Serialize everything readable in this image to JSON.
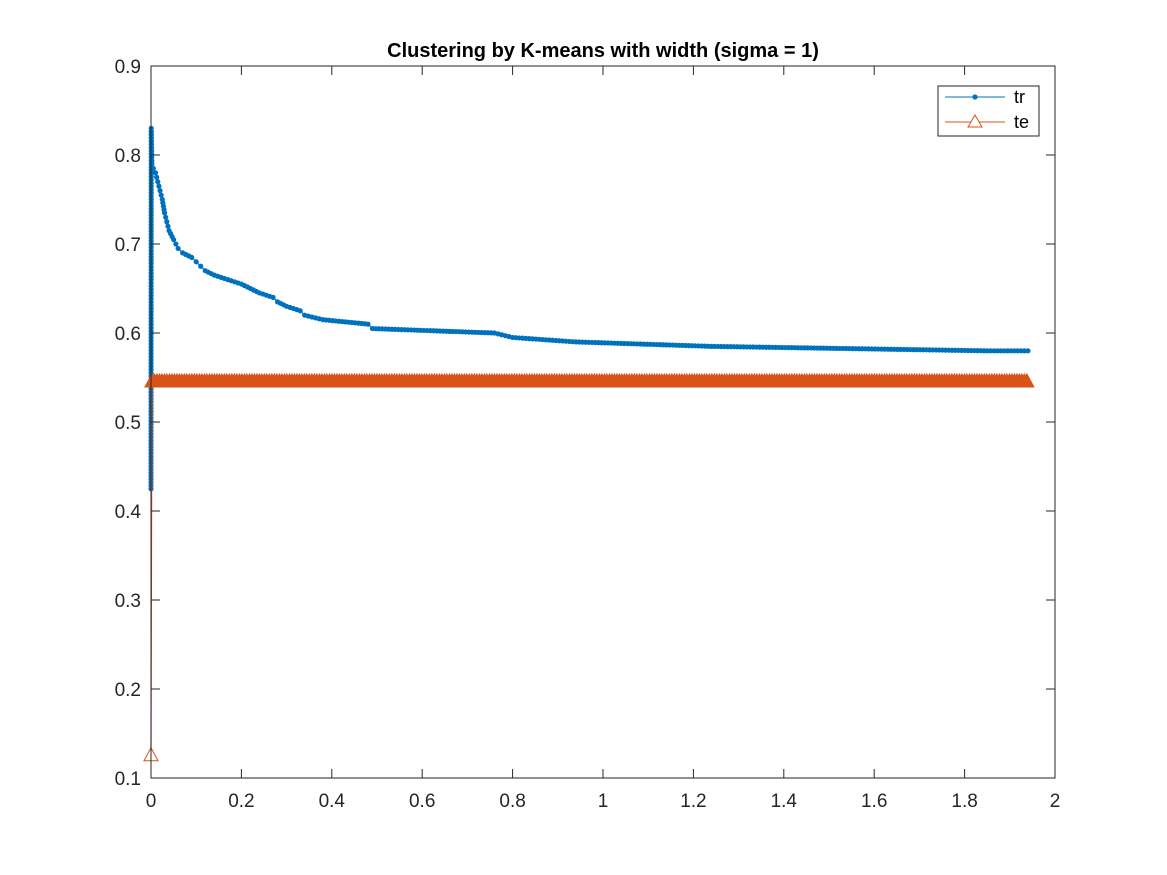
{
  "chart_data": {
    "type": "line",
    "title": "Clustering by K-means with width (sigma = 1)",
    "xlabel": "",
    "ylabel": "",
    "xlim": [
      0,
      2
    ],
    "ylim": [
      0.1,
      0.9
    ],
    "xticks": [
      "0",
      "0.2",
      "0.4",
      "0.6",
      "0.8",
      "1",
      "1.2",
      "1.4",
      "1.6",
      "1.8",
      "2"
    ],
    "yticks": [
      "0.1",
      "0.2",
      "0.3",
      "0.4",
      "0.5",
      "0.6",
      "0.7",
      "0.8",
      "0.9"
    ],
    "grid": false,
    "legend_position": "top-right",
    "series": [
      {
        "name": "tr",
        "color": "#0072BD",
        "marker": "dot",
        "points": [
          [
            0.0,
            0.425
          ],
          [
            0.0005,
            0.83
          ],
          [
            0.002,
            0.79
          ],
          [
            0.005,
            0.785
          ],
          [
            0.01,
            0.78
          ],
          [
            0.015,
            0.77
          ],
          [
            0.02,
            0.76
          ],
          [
            0.025,
            0.75
          ],
          [
            0.03,
            0.735
          ],
          [
            0.035,
            0.725
          ],
          [
            0.04,
            0.715
          ],
          [
            0.05,
            0.705
          ],
          [
            0.055,
            0.7
          ],
          [
            0.06,
            0.695
          ],
          [
            0.07,
            0.69
          ],
          [
            0.09,
            0.685
          ],
          [
            0.1,
            0.68
          ],
          [
            0.11,
            0.675
          ],
          [
            0.12,
            0.67
          ],
          [
            0.14,
            0.665
          ],
          [
            0.17,
            0.66
          ],
          [
            0.2,
            0.655
          ],
          [
            0.22,
            0.65
          ],
          [
            0.24,
            0.645
          ],
          [
            0.27,
            0.64
          ],
          [
            0.28,
            0.635
          ],
          [
            0.3,
            0.63
          ],
          [
            0.33,
            0.625
          ],
          [
            0.34,
            0.62
          ],
          [
            0.38,
            0.615
          ],
          [
            0.48,
            0.61
          ],
          [
            0.49,
            0.605
          ],
          [
            0.76,
            0.6
          ],
          [
            0.8,
            0.595
          ],
          [
            0.94,
            0.59
          ],
          [
            1.24,
            0.585
          ],
          [
            1.85,
            0.58
          ],
          [
            1.94,
            0.58
          ]
        ]
      },
      {
        "name": "te",
        "color": "#D95319",
        "marker": "triangle",
        "points": [
          [
            0.0,
            0.125
          ],
          [
            0.002,
            0.545
          ],
          [
            0.5,
            0.545
          ],
          [
            1.0,
            0.545
          ],
          [
            1.5,
            0.545
          ],
          [
            1.94,
            0.545
          ]
        ]
      }
    ]
  }
}
